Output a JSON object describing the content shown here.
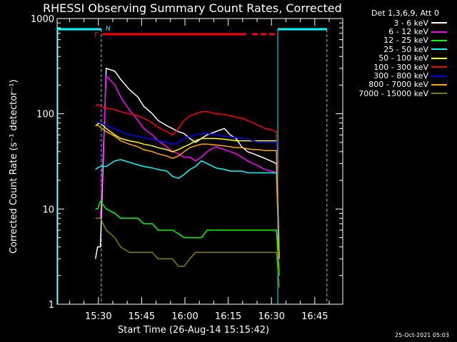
{
  "title": "RHESSI Observing Summary Count Rates, Corrected",
  "detector_note": "Det 1,3,6,9, Att 0",
  "timestamp": "25-Oct-2021 05:03",
  "flags": {
    "f_label": "F",
    "n_label": "N"
  },
  "colors": {
    "background": "#000000",
    "axes": "#ffffff",
    "cyan_bars": "#00ffff",
    "flare_bar": "#ff0000"
  },
  "chart_data": {
    "type": "line",
    "title": "RHESSI Observing Summary Count Rates, Corrected",
    "xlabel": "Start Time (26-Aug-14 15:15:42)",
    "ylabel": "Corrected Count Rate (s⁻¹ detector⁻¹)",
    "yscale": "log",
    "ylim": [
      1,
      1000
    ],
    "xlim_minutes_after_15_15_42": [
      0,
      99
    ],
    "yticks": [
      "1",
      "10",
      "100",
      "1000"
    ],
    "xticks": [
      "15:30",
      "15:45",
      "16:00",
      "16:15",
      "16:30",
      "16:45"
    ],
    "legend_position": "right",
    "x_minutes": [
      13.3,
      14,
      15,
      17,
      20,
      22,
      25,
      28,
      30,
      33,
      35,
      38,
      40,
      42,
      44,
      46,
      48,
      50,
      52,
      55,
      58,
      60,
      62,
      64,
      66,
      68,
      70,
      72,
      74,
      76,
      77
    ],
    "series": [
      {
        "name": "3 - 6 keV",
        "color": "#ffffff",
        "values": [
          3,
          4,
          4,
          300,
          280,
          230,
          180,
          150,
          120,
          100,
          85,
          75,
          70,
          65,
          62,
          55,
          50,
          55,
          60,
          65,
          70,
          60,
          55,
          45,
          40,
          38,
          36,
          34,
          32,
          30,
          3
        ]
      },
      {
        "name": "6 - 12 keV",
        "color": "#ff00ff",
        "values": [
          8,
          8,
          8,
          250,
          200,
          150,
          110,
          85,
          70,
          60,
          52,
          45,
          40,
          38,
          35,
          35,
          32,
          35,
          40,
          45,
          42,
          40,
          38,
          35,
          32,
          30,
          28,
          26,
          25,
          24,
          3
        ]
      },
      {
        "name": "12 - 25 keV",
        "color": "#00ff00",
        "values": [
          10,
          10,
          12,
          10,
          9,
          8,
          8,
          8,
          7,
          7,
          6,
          6,
          6,
          5.5,
          5,
          5,
          5,
          5,
          6,
          6,
          6,
          6,
          6,
          6,
          6,
          6,
          6,
          6,
          6,
          6,
          2
        ]
      },
      {
        "name": "25 - 50 keV",
        "color": "#00ffff",
        "values": [
          26,
          27,
          28,
          28,
          32,
          33,
          31,
          29,
          28,
          27,
          26,
          25,
          22,
          21,
          23,
          26,
          28,
          32,
          30,
          27,
          26,
          25,
          25,
          25,
          24,
          24,
          24,
          24,
          24,
          24,
          3
        ]
      },
      {
        "name": "50 - 100 keV",
        "color": "#ffff00",
        "values": [
          75,
          78,
          80,
          70,
          60,
          55,
          52,
          50,
          48,
          46,
          44,
          42,
          40,
          42,
          45,
          48,
          52,
          55,
          55,
          55,
          54,
          53,
          52,
          52,
          52,
          52,
          52,
          52,
          52,
          52,
          3
        ]
      },
      {
        "name": "100 - 300 keV",
        "color": "#ff0000",
        "values": [
          120,
          125,
          120,
          115,
          110,
          105,
          100,
          95,
          90,
          80,
          72,
          65,
          60,
          70,
          85,
          95,
          100,
          105,
          105,
          100,
          98,
          95,
          92,
          90,
          85,
          80,
          75,
          70,
          68,
          65,
          3
        ]
      },
      {
        "name": "300 - 800 keV",
        "color": "#0000ff",
        "values": [
          80,
          82,
          80,
          75,
          70,
          65,
          60,
          58,
          56,
          54,
          52,
          50,
          48,
          50,
          55,
          58,
          60,
          62,
          62,
          60,
          58,
          57,
          56,
          55,
          54,
          52,
          50,
          50,
          50,
          50,
          3
        ]
      },
      {
        "name": "800 - 7000 keV",
        "color": "#ffa500",
        "values": [
          75,
          76,
          72,
          65,
          58,
          52,
          48,
          45,
          42,
          40,
          38,
          36,
          34,
          36,
          40,
          44,
          46,
          48,
          48,
          47,
          46,
          45,
          44,
          44,
          43,
          42,
          42,
          41,
          41,
          41,
          3
        ]
      },
      {
        "name": "7000 - 15000 keV",
        "color": "#808000",
        "values": [
          8,
          8,
          8,
          6,
          5,
          4,
          3.5,
          3.5,
          3.5,
          3.5,
          3,
          3,
          3,
          2.5,
          2.5,
          3,
          3.5,
          3.5,
          3.5,
          3.5,
          3.5,
          3.5,
          3.5,
          3.5,
          3.5,
          3.5,
          3.5,
          3.5,
          3.5,
          3.5,
          1.5
        ]
      }
    ]
  }
}
